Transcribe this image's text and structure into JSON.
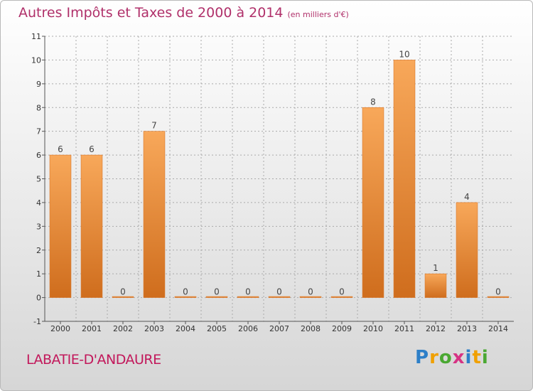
{
  "title": "Autres Impôts et Taxes de 2000 à 2014",
  "unit": "(en milliers d'€)",
  "place": "LABATIE-D'ANDAURE",
  "logo": {
    "letters": [
      "P",
      "r",
      "o",
      "x",
      "i",
      "t",
      "i"
    ],
    "colors": [
      "#2d7fc8",
      "#f0a000",
      "#4aa832",
      "#d63384",
      "#2d7fc8",
      "#f0a000",
      "#4aa832"
    ]
  },
  "colors": {
    "bar_top": "#f8a85a",
    "bar_bottom": "#cf6d1d",
    "axis": "#555555",
    "grid": "#aaaaaa"
  },
  "chart_data": {
    "type": "bar",
    "categories": [
      "2000",
      "2001",
      "2002",
      "2003",
      "2004",
      "2005",
      "2006",
      "2007",
      "2008",
      "2009",
      "2010",
      "2011",
      "2012",
      "2013",
      "2014"
    ],
    "values": [
      6,
      6,
      0,
      7,
      0,
      0,
      0,
      0,
      0,
      0,
      8,
      10,
      1,
      4,
      0
    ],
    "ylim": [
      -1,
      11
    ],
    "yticks": [
      "-1",
      "0",
      "1",
      "2",
      "3",
      "4",
      "5",
      "6",
      "7",
      "8",
      "9",
      "10",
      "11"
    ],
    "title": "Autres Impôts et Taxes de 2000 à 2014",
    "xlabel": "",
    "ylabel": ""
  }
}
